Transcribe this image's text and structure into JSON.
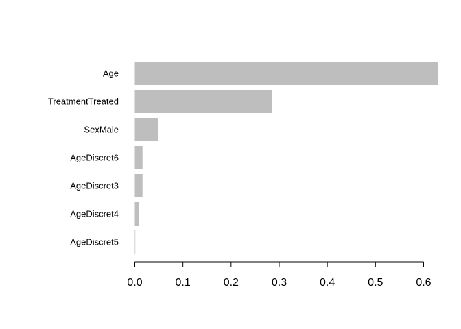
{
  "chart_data": {
    "type": "bar",
    "orientation": "horizontal",
    "categories": [
      "Age",
      "TreatmentTreated",
      "SexMale",
      "AgeDiscret6",
      "AgeDiscret3",
      "AgeDiscret4",
      "AgeDiscret5"
    ],
    "values": [
      0.63,
      0.285,
      0.048,
      0.016,
      0.016,
      0.009,
      0.001
    ],
    "xlim": [
      0,
      0.62
    ],
    "x_ticks": [
      0.0,
      0.1,
      0.2,
      0.3,
      0.4,
      0.5,
      0.6
    ],
    "x_tick_labels": [
      "0.0",
      "0.1",
      "0.2",
      "0.3",
      "0.4",
      "0.5",
      "0.6"
    ],
    "grid": false,
    "legend": "none",
    "bar_color": "#bebebe",
    "axis_color": "#000000"
  }
}
